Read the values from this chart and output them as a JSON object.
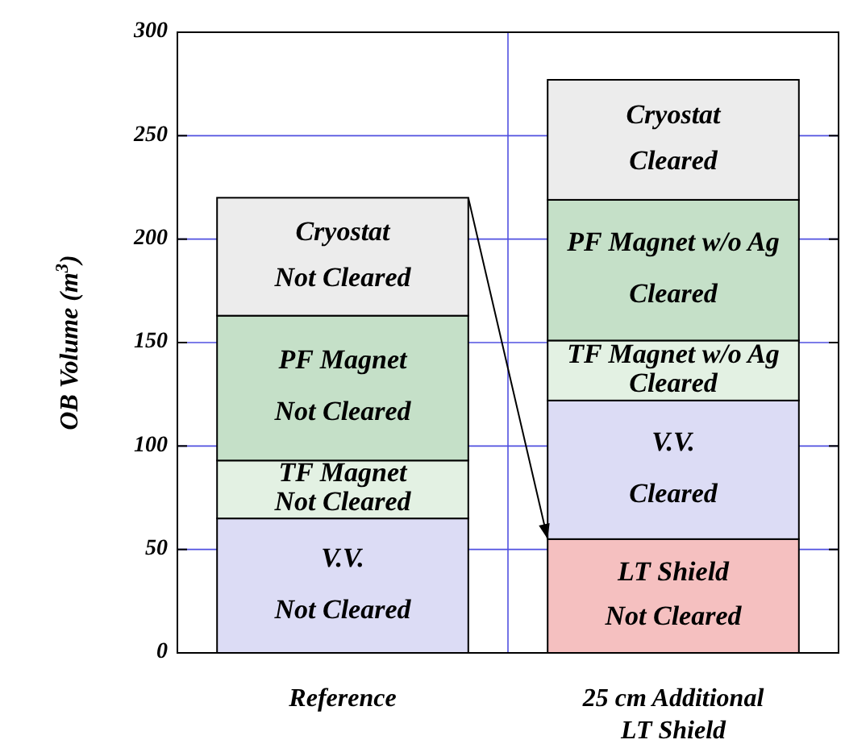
{
  "chart_data": {
    "type": "bar",
    "stacked": true,
    "ylabel": "OB Volume (m$^{3}$)",
    "categories": [
      "Reference",
      "25 cm Additional LT Shield"
    ],
    "series": [
      {
        "color": "#f5c0c0",
        "values": [
          null,
          55
        ],
        "value_labels": [
          null,
          "LT Shield\nNot Cleared"
        ]
      },
      {
        "color": "#dcdcf5",
        "values": [
          65,
          67
        ],
        "value_labels": [
          "V.V.\nNot Cleared",
          "V.V.\nCleared"
        ]
      },
      {
        "color": "#e3f1e3",
        "values": [
          28,
          29
        ],
        "value_labels": [
          "TF Magnet\nNot Cleared",
          "TF Magnet w/o Ag\nCleared"
        ]
      },
      {
        "color": "#c5e0c8",
        "values": [
          70,
          68
        ],
        "value_labels": [
          "PF Magnet\nNot Cleared",
          "PF Magnet w/o Ag\nCleared"
        ]
      },
      {
        "color": "#ececec",
        "values": [
          57,
          58
        ],
        "value_labels": [
          "Cryostat\nNot Cleared",
          "Cryostat\nCleared"
        ]
      }
    ],
    "ylim": [
      0,
      300
    ],
    "yticks": [
      0,
      50,
      100,
      150,
      200,
      250,
      300
    ],
    "grid": true
  }
}
